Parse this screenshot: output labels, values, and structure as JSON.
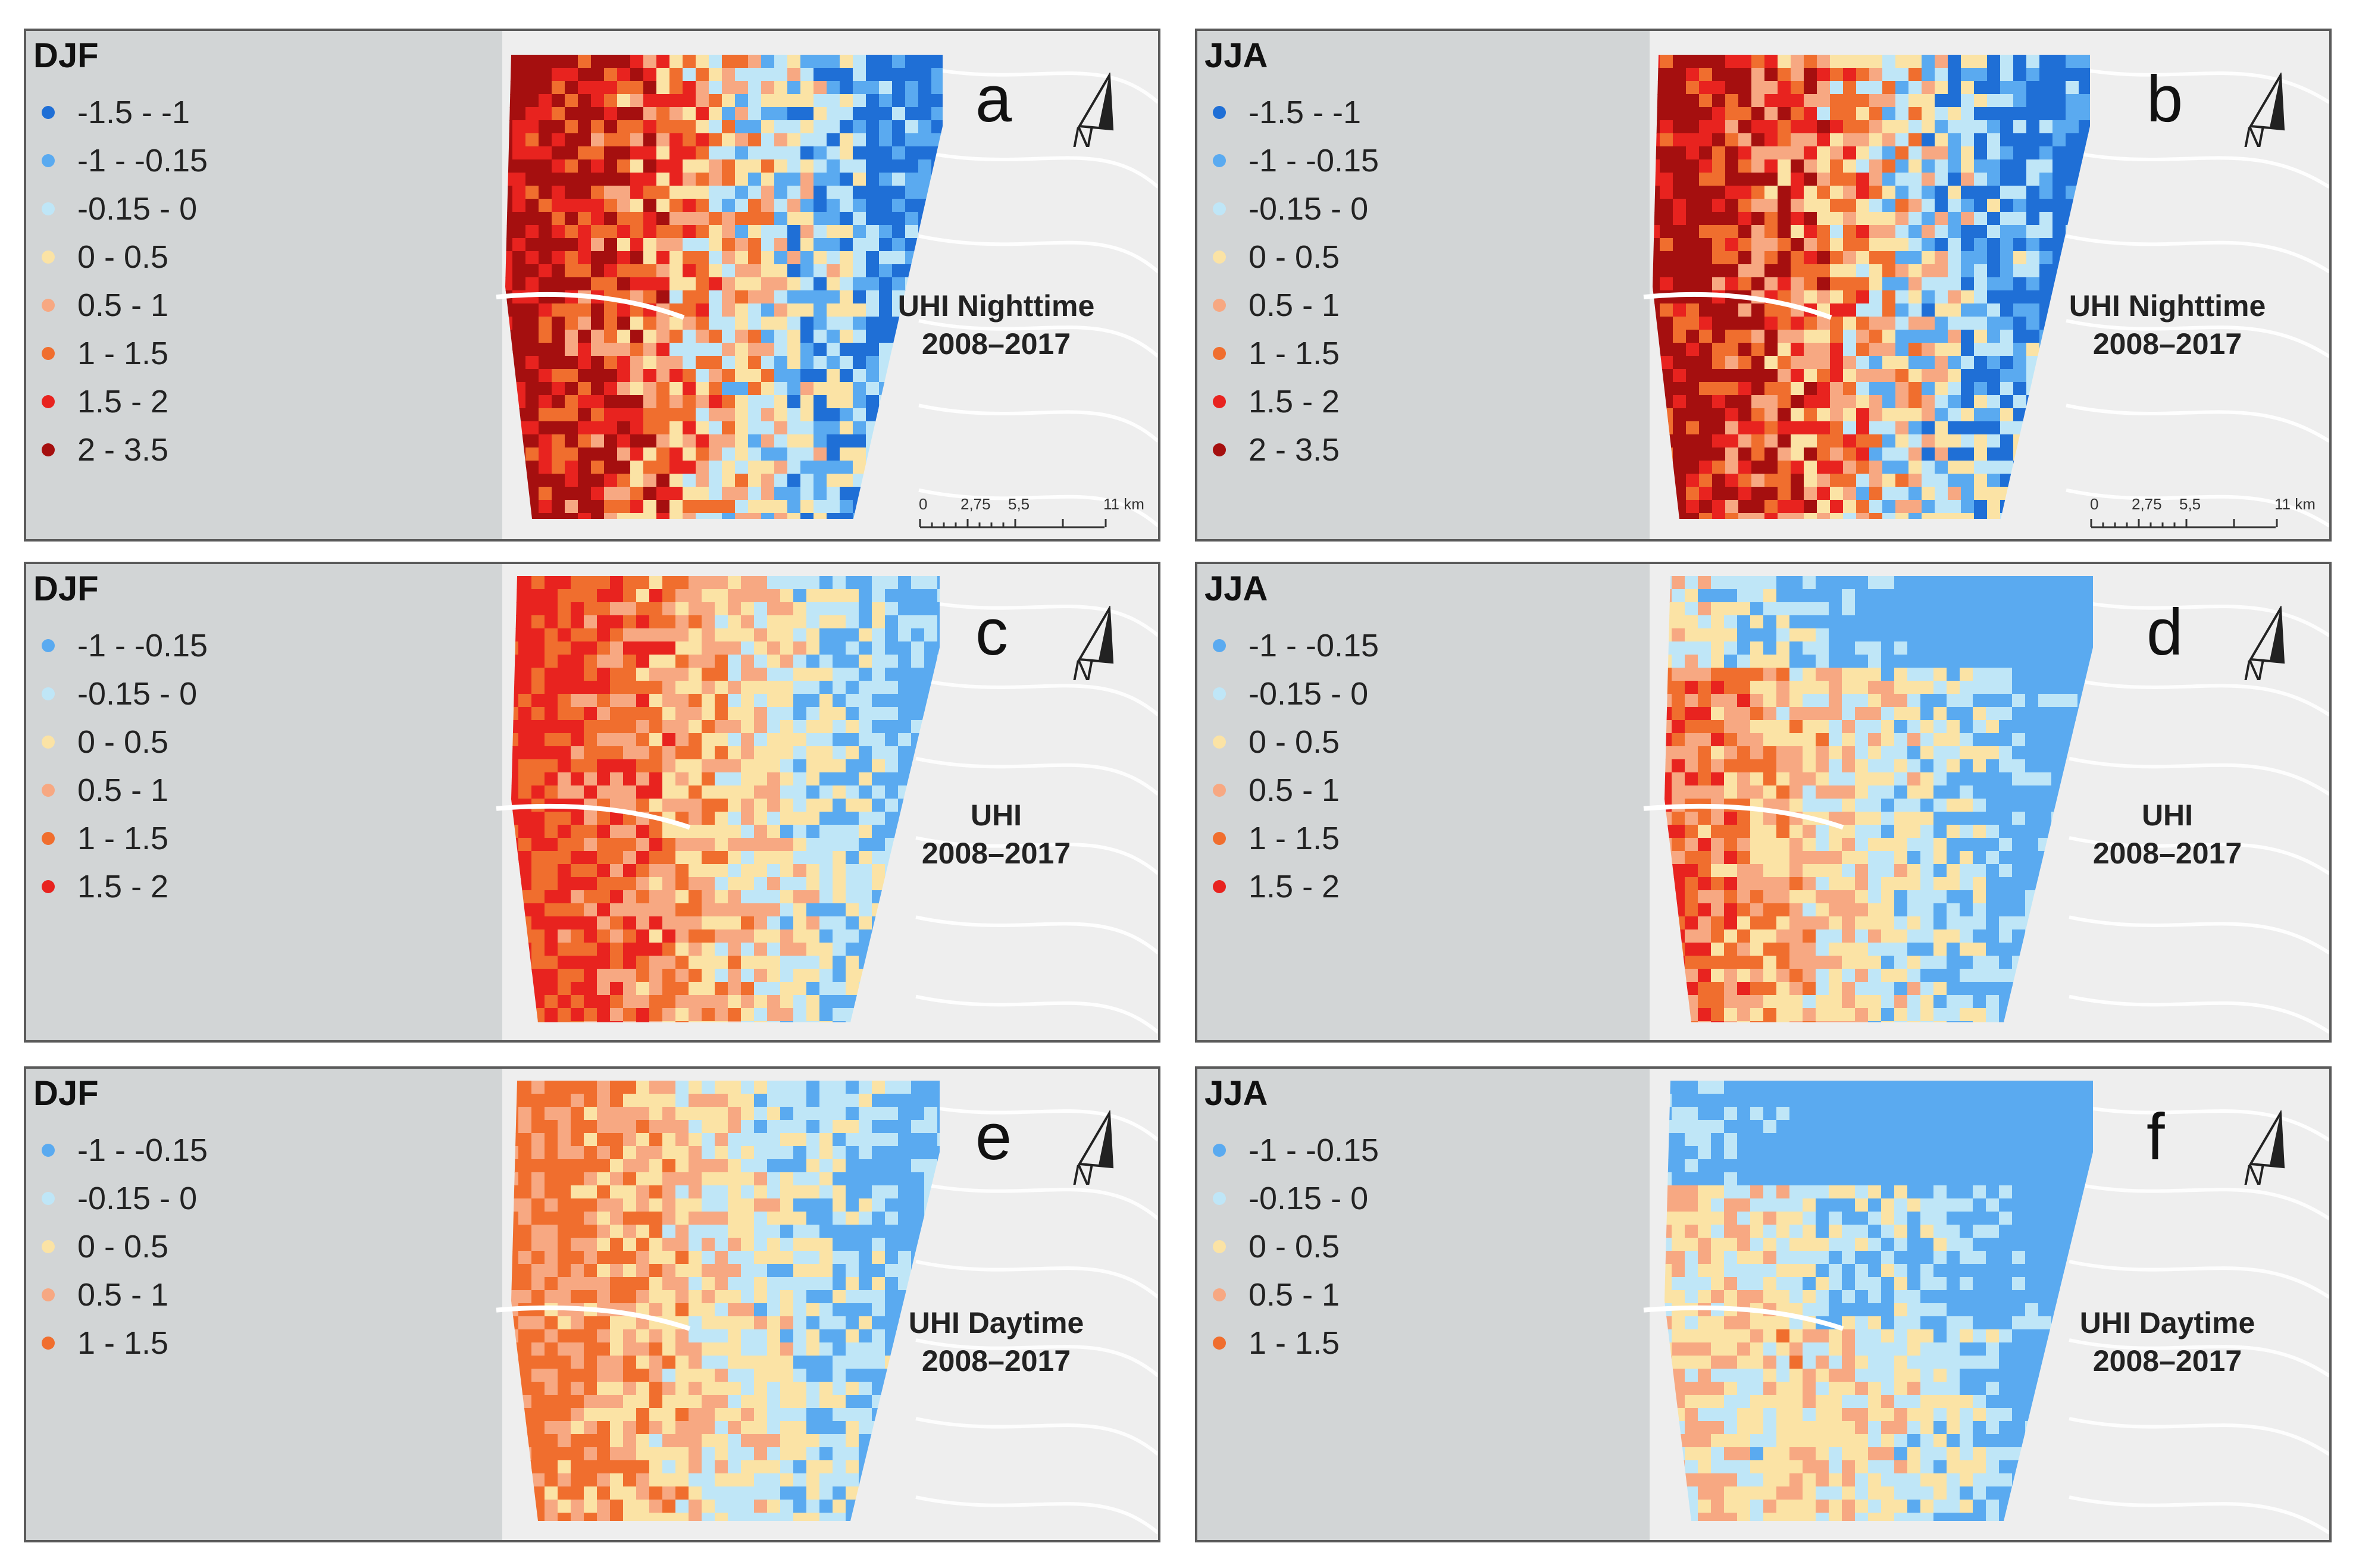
{
  "figure": {
    "panels": [
      {
        "id": "a",
        "season": "DJF",
        "letter": "a",
        "title_line1": "UHI Nighttime",
        "title_line2": "2008–2017",
        "legend": [
          {
            "label": "-1.5 - -1",
            "color": "#1f6fd6"
          },
          {
            "label": "-1 - -0.15",
            "color": "#5aaaf0"
          },
          {
            "label": "-0.15 - 0",
            "color": "#bfe6f7"
          },
          {
            "label": "0 - 0.5",
            "color": "#fbe3a5"
          },
          {
            "label": "0.5 - 1",
            "color": "#f7a882"
          },
          {
            "label": "1 - 1.5",
            "color": "#f06e2e"
          },
          {
            "label": "1.5 - 2",
            "color": "#e8231f"
          },
          {
            "label": "2 - 3.5",
            "color": "#a50f0f"
          }
        ],
        "scale": {
          "labels": [
            "0",
            "2,75",
            "5,5",
            "11 km"
          ]
        }
      },
      {
        "id": "b",
        "season": "JJA",
        "letter": "b",
        "title_line1": "UHI Nighttime",
        "title_line2": "2008–2017",
        "legend": [
          {
            "label": "-1.5 - -1",
            "color": "#1f6fd6"
          },
          {
            "label": "-1 - -0.15",
            "color": "#5aaaf0"
          },
          {
            "label": "-0.15 - 0",
            "color": "#bfe6f7"
          },
          {
            "label": "0 - 0.5",
            "color": "#fbe3a5"
          },
          {
            "label": "0.5 - 1",
            "color": "#f7a882"
          },
          {
            "label": "1 - 1.5",
            "color": "#f06e2e"
          },
          {
            "label": "1.5 - 2",
            "color": "#e8231f"
          },
          {
            "label": "2 - 3.5",
            "color": "#a50f0f"
          }
        ],
        "scale": {
          "labels": [
            "0",
            "2,75",
            "5,5",
            "11 km"
          ]
        }
      },
      {
        "id": "c",
        "season": "DJF",
        "letter": "c",
        "title_line1": "UHI",
        "title_line2": "2008–2017",
        "legend": [
          {
            "label": "-1 - -0.15",
            "color": "#5aaaf0"
          },
          {
            "label": "-0.15 - 0",
            "color": "#bfe6f7"
          },
          {
            "label": "0 - 0.5",
            "color": "#fbe3a5"
          },
          {
            "label": "0.5 - 1",
            "color": "#f7a882"
          },
          {
            "label": "1 - 1.5",
            "color": "#f06e2e"
          },
          {
            "label": "1.5 - 2",
            "color": "#e8231f"
          }
        ]
      },
      {
        "id": "d",
        "season": "JJA",
        "letter": "d",
        "title_line1": "UHI",
        "title_line2": "2008–2017",
        "legend": [
          {
            "label": "-1 - -0.15",
            "color": "#5aaaf0"
          },
          {
            "label": "-0.15 - 0",
            "color": "#bfe6f7"
          },
          {
            "label": "0 - 0.5",
            "color": "#fbe3a5"
          },
          {
            "label": "0.5 - 1",
            "color": "#f7a882"
          },
          {
            "label": "1 - 1.5",
            "color": "#f06e2e"
          },
          {
            "label": "1.5 - 2",
            "color": "#e8231f"
          }
        ]
      },
      {
        "id": "e",
        "season": "DJF",
        "letter": "e",
        "title_line1": "UHI Daytime",
        "title_line2": "2008–2017",
        "legend": [
          {
            "label": "-1 - -0.15",
            "color": "#5aaaf0"
          },
          {
            "label": "-0.15 - 0",
            "color": "#bfe6f7"
          },
          {
            "label": "0 - 0.5",
            "color": "#fbe3a5"
          },
          {
            "label": "0.5 - 1",
            "color": "#f7a882"
          },
          {
            "label": "1 - 1.5",
            "color": "#f06e2e"
          }
        ]
      },
      {
        "id": "f",
        "season": "JJA",
        "letter": "f",
        "title_line1": "UHI Daytime",
        "title_line2": "2008–2017",
        "legend": [
          {
            "label": "-1 - -0.15",
            "color": "#5aaaf0"
          },
          {
            "label": "-0.15 - 0",
            "color": "#bfe6f7"
          },
          {
            "label": "0 - 0.5",
            "color": "#fbe3a5"
          },
          {
            "label": "0.5 - 1",
            "color": "#f7a882"
          },
          {
            "label": "1 - 1.5",
            "color": "#f06e2e"
          }
        ]
      }
    ],
    "north_label": "N",
    "colors": {
      "sea": "#d2d5d6",
      "land": "#eeeeee",
      "frame": "#5a5a5a"
    }
  }
}
